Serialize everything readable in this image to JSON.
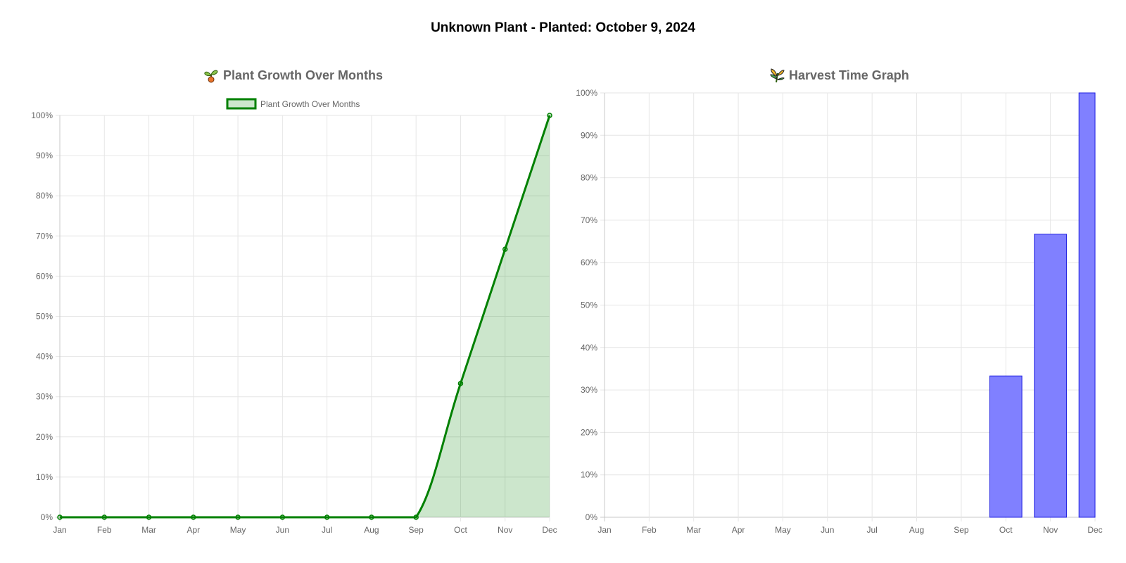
{
  "page": {
    "title": "Unknown Plant - Planted: October 9, 2024"
  },
  "charts": {
    "growth": {
      "title": "Plant Growth Over Months",
      "icon": "seedling-icon",
      "legend_label": "Plant Growth Over Months"
    },
    "harvest": {
      "title": "Harvest Time Graph",
      "icon": "sheaf-of-rice-icon"
    }
  },
  "chart_data": [
    {
      "type": "area",
      "title": "Plant Growth Over Months",
      "categories": [
        "Jan",
        "Feb",
        "Mar",
        "Apr",
        "May",
        "Jun",
        "Jul",
        "Aug",
        "Sep",
        "Oct",
        "Nov",
        "Dec"
      ],
      "series": [
        {
          "name": "Plant Growth Over Months",
          "values": [
            0,
            0,
            0,
            0,
            0,
            0,
            0,
            0,
            0,
            33.3,
            66.7,
            100
          ],
          "color": "#008000",
          "fill": "rgba(0,128,0,0.2)"
        }
      ],
      "y_ticks": [
        "0%",
        "10%",
        "20%",
        "30%",
        "40%",
        "50%",
        "60%",
        "70%",
        "80%",
        "90%",
        "100%"
      ],
      "ylim": [
        0,
        100
      ],
      "grid": true,
      "legend": "top"
    },
    {
      "type": "bar",
      "title": "Harvest Time Graph",
      "categories": [
        "Jan",
        "Feb",
        "Mar",
        "Apr",
        "May",
        "Jun",
        "Jul",
        "Aug",
        "Sep",
        "Oct",
        "Nov",
        "Dec"
      ],
      "values": [
        0,
        0,
        0,
        0,
        0,
        0,
        0,
        0,
        0,
        33.3,
        66.7,
        100
      ],
      "color": "#8080ff",
      "border_color": "#2020e0",
      "y_ticks": [
        "0%",
        "10%",
        "20%",
        "30%",
        "40%",
        "50%",
        "60%",
        "70%",
        "80%",
        "90%",
        "100%"
      ],
      "ylim": [
        0,
        100
      ],
      "grid": true,
      "legend": "none"
    }
  ]
}
